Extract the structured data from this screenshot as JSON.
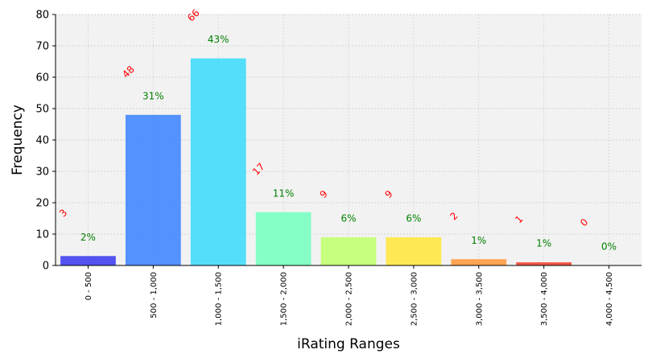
{
  "chart_data": {
    "type": "bar",
    "categories": [
      "0 - 500",
      "500 - 1,000",
      "1,000 - 1,500",
      "1,500 - 2,000",
      "2,000 - 2,500",
      "2,500 - 3,000",
      "3,000 - 3,500",
      "3,500 - 4,000",
      "4,000 - 4,500"
    ],
    "values": [
      3,
      48,
      66,
      17,
      9,
      9,
      2,
      1,
      0
    ],
    "count_labels": [
      "3",
      "48",
      "66",
      "17",
      "9",
      "9",
      "2",
      "1",
      "0"
    ],
    "percent_labels": [
      "2%",
      "31%",
      "43%",
      "11%",
      "6%",
      "6%",
      "1%",
      "1%",
      "0%"
    ],
    "colors": [
      "#4a4af0",
      "#4a8cff",
      "#4adcfa",
      "#80ffc4",
      "#c4ff78",
      "#ffe84a",
      "#ff9f4a",
      "#f24e3a",
      "#8b0000"
    ],
    "xlabel": "iRating Ranges",
    "ylabel": "Frequency",
    "ylim": [
      0,
      80
    ],
    "yticks": [
      0,
      10,
      20,
      30,
      40,
      50,
      60,
      70,
      80
    ],
    "grid": true,
    "background": "#f2f2f2",
    "count_label_color": "#ff0000",
    "percent_label_color": "#008000"
  }
}
